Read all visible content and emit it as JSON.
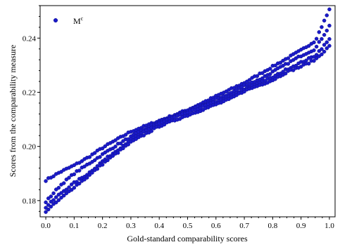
{
  "chart_data": {
    "type": "scatter",
    "xlabel": "Gold-standard comparability scores",
    "ylabel": "Scores from the comparability measure",
    "xlim": [
      -0.02,
      1.02
    ],
    "ylim": [
      0.174,
      0.252
    ],
    "x_ticks": [
      0.0,
      0.1,
      0.2,
      0.3,
      0.4,
      0.5,
      0.6,
      0.7,
      0.8,
      0.9,
      1.0
    ],
    "x_tick_labels": [
      "0.0",
      "0.1",
      "0.2",
      "0.3",
      "0.4",
      "0.5",
      "0.6",
      "0.7",
      "0.8",
      "0.9",
      "1.0"
    ],
    "y_ticks": [
      0.18,
      0.2,
      0.22,
      0.24
    ],
    "y_tick_labels": [
      "0.18",
      "0.20",
      "0.22",
      "0.24"
    ],
    "grid": false,
    "legend_position": "top-left",
    "series": [
      {
        "name": "M",
        "name_superscript": "c",
        "color": "#1a1ac8",
        "bands": [
          {
            "points": [
              [
                0.0,
                0.1875
              ],
              [
                0.05,
                0.1905
              ],
              [
                0.1,
                0.193
              ],
              [
                0.15,
                0.196
              ],
              [
                0.2,
                0.1995
              ],
              [
                0.25,
                0.2025
              ],
              [
                0.3,
                0.2055
              ],
              [
                0.35,
                0.2075
              ],
              [
                0.4,
                0.2095
              ],
              [
                0.45,
                0.2115
              ],
              [
                0.5,
                0.2135
              ],
              [
                0.55,
                0.216
              ],
              [
                0.6,
                0.2185
              ],
              [
                0.65,
                0.221
              ],
              [
                0.7,
                0.2235
              ],
              [
                0.75,
                0.2265
              ],
              [
                0.8,
                0.2295
              ],
              [
                0.85,
                0.2325
              ],
              [
                0.9,
                0.2355
              ],
              [
                0.95,
                0.239
              ],
              [
                1.0,
                0.2505
              ]
            ]
          },
          {
            "points": [
              [
                0.0,
                0.1795
              ],
              [
                0.05,
                0.1855
              ],
              [
                0.1,
                0.19
              ],
              [
                0.15,
                0.1935
              ],
              [
                0.2,
                0.197
              ],
              [
                0.25,
                0.2005
              ],
              [
                0.3,
                0.2035
              ],
              [
                0.35,
                0.2065
              ],
              [
                0.4,
                0.209
              ],
              [
                0.45,
                0.211
              ],
              [
                0.5,
                0.213
              ],
              [
                0.55,
                0.215
              ],
              [
                0.6,
                0.2175
              ],
              [
                0.65,
                0.2195
              ],
              [
                0.7,
                0.2225
              ],
              [
                0.75,
                0.2245
              ],
              [
                0.8,
                0.2275
              ],
              [
                0.85,
                0.2305
              ],
              [
                0.9,
                0.2335
              ],
              [
                0.95,
                0.236
              ],
              [
                1.0,
                0.2445
              ]
            ]
          },
          {
            "points": [
              [
                0.0,
                0.1775
              ],
              [
                0.05,
                0.1825
              ],
              [
                0.1,
                0.1865
              ],
              [
                0.15,
                0.19
              ],
              [
                0.2,
                0.1945
              ],
              [
                0.25,
                0.1985
              ],
              [
                0.3,
                0.2025
              ],
              [
                0.35,
                0.2055
              ],
              [
                0.4,
                0.2085
              ],
              [
                0.45,
                0.2105
              ],
              [
                0.5,
                0.2125
              ],
              [
                0.55,
                0.2145
              ],
              [
                0.6,
                0.2165
              ],
              [
                0.65,
                0.2185
              ],
              [
                0.7,
                0.221
              ],
              [
                0.75,
                0.2235
              ],
              [
                0.8,
                0.2255
              ],
              [
                0.85,
                0.2285
              ],
              [
                0.9,
                0.231
              ],
              [
                0.95,
                0.2335
              ],
              [
                1.0,
                0.2395
              ]
            ]
          },
          {
            "points": [
              [
                0.0,
                0.176
              ],
              [
                0.05,
                0.1805
              ],
              [
                0.1,
                0.185
              ],
              [
                0.15,
                0.189
              ],
              [
                0.2,
                0.1935
              ],
              [
                0.25,
                0.1975
              ],
              [
                0.3,
                0.2015
              ],
              [
                0.35,
                0.2045
              ],
              [
                0.4,
                0.2075
              ],
              [
                0.45,
                0.2095
              ],
              [
                0.5,
                0.2115
              ],
              [
                0.55,
                0.2135
              ],
              [
                0.6,
                0.2155
              ],
              [
                0.65,
                0.2175
              ],
              [
                0.7,
                0.2205
              ],
              [
                0.75,
                0.2225
              ],
              [
                0.8,
                0.2245
              ],
              [
                0.85,
                0.2275
              ],
              [
                0.9,
                0.2295
              ],
              [
                0.95,
                0.232
              ],
              [
                1.0,
                0.237
              ]
            ]
          }
        ]
      }
    ]
  }
}
